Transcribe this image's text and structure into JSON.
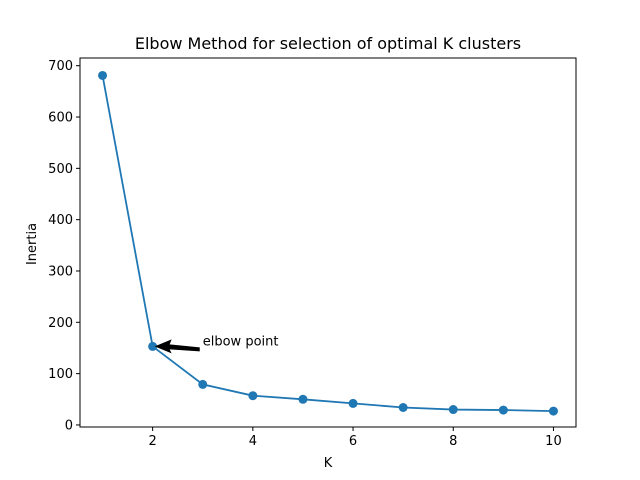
{
  "colors": {
    "series": "#1f77b4",
    "axes": "#000000",
    "background": "#ffffff",
    "annotation_arrow": "#000000"
  },
  "chart_data": {
    "type": "line",
    "title": "Elbow Method for selection of optimal K clusters",
    "xlabel": "K",
    "ylabel": "Inertia",
    "xlim": [
      0.55,
      10.45
    ],
    "ylim": [
      -4,
      715
    ],
    "xticks": [
      2,
      4,
      6,
      8,
      10
    ],
    "xtick_labels": [
      "2",
      "4",
      "6",
      "8",
      "10"
    ],
    "yticks": [
      0,
      100,
      200,
      300,
      400,
      500,
      600,
      700
    ],
    "ytick_labels": [
      "0",
      "100",
      "200",
      "300",
      "400",
      "500",
      "600",
      "700"
    ],
    "grid": false,
    "legend": "none",
    "series": [
      {
        "x": [
          1,
          2,
          3,
          4,
          5,
          6,
          7,
          8,
          9,
          10
        ],
        "y": [
          681,
          153,
          79,
          57,
          50,
          42,
          34,
          30,
          29,
          27
        ],
        "marker": "circle"
      }
    ],
    "annotation": {
      "text": "elbow point",
      "xy": [
        2,
        153
      ],
      "xytext": [
        3,
        153
      ]
    }
  }
}
